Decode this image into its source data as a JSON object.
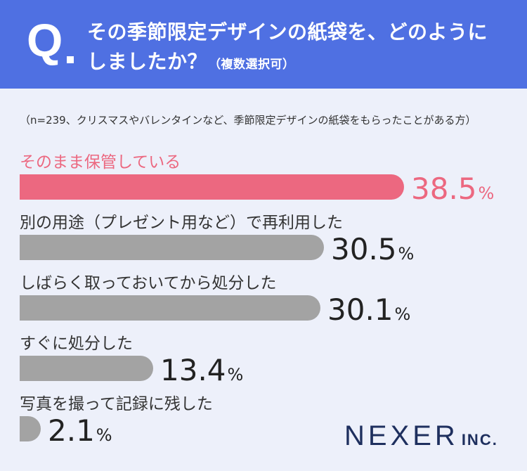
{
  "header": {
    "q_mark": "Q",
    "question_line1": "その季節限定デザインの紙袋を、どのように",
    "question_line2": "しましたか？",
    "question_note": "（複数選択可）"
  },
  "sample_note": "（n=239、クリスマスやバレンタインなど、季節限定デザインの紙袋をもらったことがある方）",
  "colors": {
    "header_bg": "#4F70E2",
    "page_bg": "#EDF0FA",
    "highlight": "#EC6880",
    "bar_gray": "#A3A3A3",
    "value_dark": "#222222"
  },
  "chart_data": {
    "type": "bar",
    "orientation": "horizontal",
    "unit": "%",
    "categories": [
      "そのまま保管している",
      "別の用途（プレゼント用など）で再利用した",
      "しばらく取っておいてから処分した",
      "すぐに処分した",
      "写真を撮って記録に残した"
    ],
    "values": [
      38.5,
      30.5,
      30.1,
      13.4,
      2.1
    ],
    "value_labels": [
      "38.5",
      "30.5",
      "30.1",
      "13.4",
      "2.1"
    ],
    "highlight_index": 0,
    "xlim": [
      0,
      38.5
    ]
  },
  "logo": {
    "main": "NEXER",
    "sub": "INC."
  }
}
